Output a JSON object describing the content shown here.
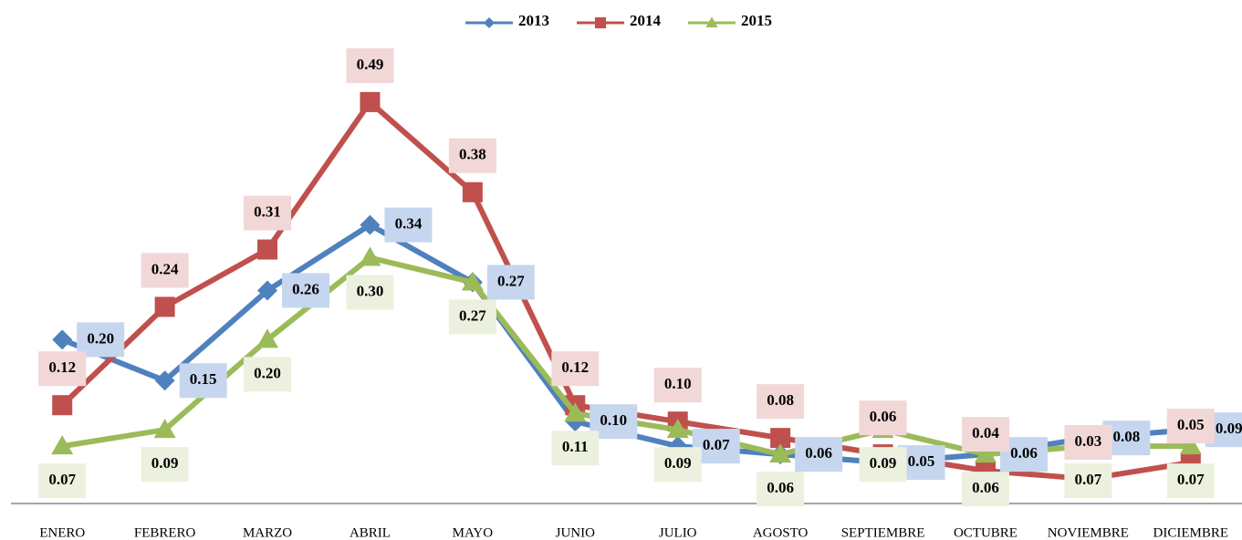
{
  "chart_data": {
    "type": "line",
    "categories": [
      "ENERO",
      "FEBRERO",
      "MARZO",
      "ABRIL",
      "MAYO",
      "JUNIO",
      "JULIO",
      "AGOSTO",
      "SEPTIEMBRE",
      "OCTUBRE",
      "NOVIEMBRE",
      "DICIEMBRE"
    ],
    "series": [
      {
        "name": "2013",
        "color": "#4f81bd",
        "marker": "diamond",
        "label_fill": "#c6d6ee",
        "values": [
          0.2,
          0.15,
          0.26,
          0.34,
          0.27,
          0.1,
          0.07,
          0.06,
          0.05,
          0.06,
          0.08,
          0.09
        ],
        "value_labels": [
          "0.20",
          "0.15",
          "0.26",
          "0.34",
          "0.27",
          "0.10",
          "0.07",
          "0.06",
          "0.05",
          "0.06",
          "0.08",
          "0.09"
        ]
      },
      {
        "name": "2014",
        "color": "#c0504d",
        "marker": "square",
        "label_fill": "#f2d7d7",
        "values": [
          0.12,
          0.24,
          0.31,
          0.49,
          0.38,
          0.12,
          0.1,
          0.08,
          0.06,
          0.04,
          0.03,
          0.05
        ],
        "value_labels": [
          "0.12",
          "0.24",
          "0.31",
          "0.49",
          "0.38",
          "0.12",
          "0.10",
          "0.08",
          "0.06",
          "0.04",
          "0.03",
          "0.05"
        ]
      },
      {
        "name": "2015",
        "color": "#9bbb59",
        "marker": "triangle",
        "label_fill": "#ebf1de",
        "values": [
          0.07,
          0.09,
          0.2,
          0.3,
          0.27,
          0.11,
          0.09,
          0.06,
          0.09,
          0.06,
          0.07,
          0.07
        ],
        "value_labels": [
          "0.07",
          "0.09",
          "0.20",
          "0.30",
          "0.27",
          "0.11",
          "0.09",
          "0.06",
          "0.09",
          "0.06",
          "0.07",
          "0.07"
        ]
      }
    ],
    "ylim": [
      0,
      0.55
    ],
    "legend": "top",
    "grid": false
  }
}
